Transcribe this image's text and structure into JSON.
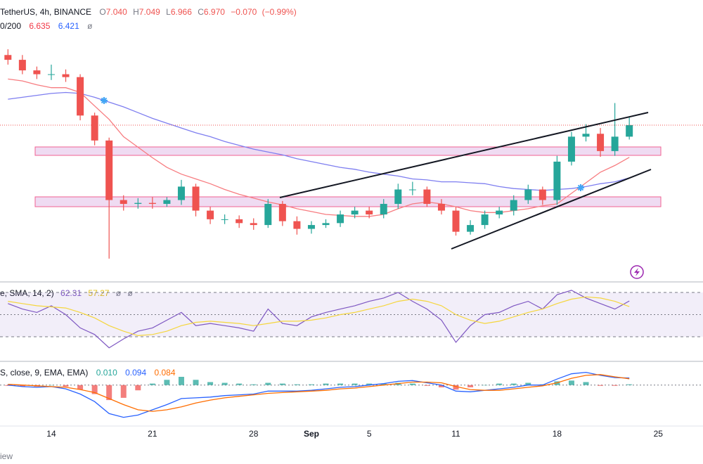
{
  "footer": "iew",
  "chart_data": {
    "type": "candlestick",
    "title": "TetherUS, 4h, BINANCE",
    "ohlc": [
      {
        "key": "O",
        "value": 7.04,
        "label": "7.040"
      },
      {
        "key": "H",
        "value": 7.049,
        "label": "7.049"
      },
      {
        "key": "L",
        "value": 6.966,
        "label": "6.966"
      },
      {
        "key": "C",
        "value": 6.97,
        "label": "6.970"
      }
    ],
    "change": {
      "value": -0.07,
      "label": "−0.070"
    },
    "change_pct": {
      "value": -0.99,
      "label": "(−0.99%)"
    },
    "ma_title": "0/200",
    "na_symbol": "ø",
    "x": [
      11,
      12,
      13,
      14,
      15,
      16,
      17,
      18,
      19,
      20,
      21,
      22,
      23,
      24,
      25,
      26,
      27,
      28,
      29,
      30,
      31,
      32,
      33,
      34,
      35,
      36,
      37,
      38,
      39,
      40,
      41,
      42,
      43,
      44,
      45,
      46,
      47,
      48,
      49,
      50,
      51,
      52,
      53,
      54
    ],
    "open": [
      7.7,
      7.65,
      7.54,
      7.5,
      7.5,
      7.47,
      7.07,
      6.81,
      6.19,
      6.15,
      6.16,
      6.15,
      6.19,
      6.33,
      6.08,
      5.99,
      5.99,
      5.95,
      5.93,
      6.15,
      5.97,
      5.89,
      5.93,
      5.95,
      6.04,
      6.08,
      6.04,
      6.15,
      6.3,
      6.3,
      6.15,
      6.08,
      5.86,
      5.93,
      6.04,
      6.08,
      6.19,
      6.3,
      6.19,
      6.59,
      6.85,
      6.88,
      6.7,
      6.85
    ],
    "high": [
      7.76,
      7.7,
      7.58,
      7.6,
      7.55,
      7.5,
      7.1,
      6.84,
      6.24,
      6.21,
      6.22,
      6.22,
      6.4,
      6.36,
      6.12,
      6.04,
      6.03,
      6.0,
      6.2,
      6.18,
      6.02,
      5.97,
      5.99,
      6.08,
      6.12,
      6.12,
      6.2,
      6.36,
      6.38,
      6.33,
      6.2,
      6.12,
      5.98,
      6.08,
      6.12,
      6.24,
      6.35,
      6.33,
      6.65,
      6.9,
      6.98,
      6.94,
      7.2,
      7.05
    ],
    "low": [
      7.6,
      7.5,
      7.45,
      7.44,
      7.42,
      7.02,
      6.76,
      5.58,
      6.08,
      6.1,
      6.1,
      6.12,
      6.14,
      6.02,
      5.94,
      5.94,
      5.9,
      5.88,
      5.9,
      5.92,
      5.83,
      5.84,
      5.9,
      5.91,
      6.0,
      6.0,
      6.0,
      6.1,
      6.24,
      6.12,
      6.04,
      5.82,
      5.83,
      5.89,
      6.0,
      6.03,
      6.15,
      6.14,
      6.14,
      6.55,
      6.8,
      6.64,
      6.65,
      6.82
    ],
    "close": [
      7.65,
      7.54,
      7.5,
      7.5,
      7.47,
      7.07,
      6.81,
      6.19,
      6.15,
      6.16,
      6.15,
      6.19,
      6.33,
      6.08,
      5.99,
      5.99,
      5.95,
      5.93,
      6.15,
      5.97,
      5.89,
      5.93,
      5.95,
      6.04,
      6.08,
      6.04,
      6.15,
      6.3,
      6.3,
      6.15,
      6.08,
      5.86,
      5.93,
      6.04,
      6.08,
      6.19,
      6.3,
      6.19,
      6.59,
      6.85,
      6.88,
      6.7,
      6.85,
      6.97
    ],
    "up_color": "#26a69a",
    "down_color": "#ef5350",
    "series": [
      {
        "color": "#f77c80",
        "values": [
          7.45,
          7.43,
          7.39,
          7.36,
          7.36,
          7.31,
          7.17,
          7.03,
          6.85,
          6.74,
          6.63,
          6.53,
          6.46,
          6.41,
          6.36,
          6.3,
          6.25,
          6.21,
          6.17,
          6.14,
          6.1,
          6.07,
          6.04,
          6.03,
          6.02,
          6.02,
          6.04,
          6.1,
          6.15,
          6.17,
          6.15,
          6.12,
          6.08,
          6.06,
          6.06,
          6.08,
          6.1,
          6.13,
          6.15,
          6.26,
          6.37,
          6.48,
          6.55,
          6.635
        ]
      },
      {
        "color": "#7e7ef0",
        "values": [
          7.24,
          7.26,
          7.28,
          7.3,
          7.31,
          7.3,
          7.26,
          7.21,
          7.16,
          7.1,
          7.04,
          6.99,
          6.94,
          6.89,
          6.85,
          6.8,
          6.76,
          6.72,
          6.69,
          6.66,
          6.62,
          6.59,
          6.56,
          6.53,
          6.51,
          6.48,
          6.46,
          6.44,
          6.41,
          6.4,
          6.38,
          6.38,
          6.37,
          6.36,
          6.33,
          6.31,
          6.3,
          6.29,
          6.3,
          6.31,
          6.33,
          6.36,
          6.38,
          6.421
        ]
      }
    ],
    "xlim": [
      10.45,
      59.1
    ],
    "ylim": [
      5.345,
      7.98
    ],
    "xticks": [
      14,
      21,
      28,
      {
        "value": 32,
        "label": "Sep"
      },
      {
        "value": 36,
        "label": "5"
      },
      {
        "value": 42,
        "label": "11"
      },
      {
        "value": 49,
        "label": "18"
      },
      {
        "value": 56,
        "label": "25"
      }
    ],
    "last_price_line": true,
    "panes": [
      {
        "type": "line",
        "title": "e, SMA, 14, 2)",
        "ylim": [
          10.3,
          77
        ],
        "levels": [
          70,
          50,
          30
        ],
        "band_color": "#7e57c2",
        "na_symbols": [
          "ø",
          "ø"
        ],
        "series": [
          {
            "color": "#7e57c2",
            "values": [
              60,
              55,
              52,
              58,
              50,
              38,
              32,
              20,
              28,
              35,
              38,
              45,
              52,
              40,
              42,
              40,
              38,
              35,
              55,
              42,
              40,
              48,
              52,
              55,
              58,
              62,
              65,
              70,
              62,
              55,
              45,
              25,
              40,
              50,
              52,
              58,
              62,
              55,
              68,
              72,
              65,
              60,
              55,
              62.31
            ]
          },
          {
            "color": "#f5d63d",
            "values": [
              62,
              60,
              58,
              57,
              56,
              52,
              47,
              40,
              35,
              31,
              32,
              35,
              40,
              43,
              44,
              43,
              42,
              40,
              42,
              44,
              44,
              45,
              47,
              50,
              52,
              55,
              58,
              62,
              64,
              62,
              58,
              50,
              45,
              42,
              44,
              48,
              52,
              55,
              60,
              64,
              66,
              65,
              62,
              57.27
            ]
          }
        ]
      },
      {
        "type": "macd",
        "title": "S, close, 9, EMA, EMA)",
        "ylim": [
          -0.49,
          0.26
        ],
        "histogram": {
          "values": [
            -0.01,
            -0.02,
            -0.02,
            0.0,
            -0.02,
            -0.06,
            -0.12,
            -0.2,
            -0.17,
            -0.07,
            0.02,
            0.07,
            0.11,
            0.07,
            0.04,
            0.03,
            0.02,
            0.01,
            0.03,
            0.02,
            0.01,
            0.01,
            0.02,
            0.02,
            0.02,
            0.02,
            0.02,
            0.03,
            0.02,
            -0.01,
            -0.03,
            -0.06,
            -0.03,
            0.0,
            0.02,
            0.02,
            0.03,
            0.01,
            0.05,
            0.06,
            0.04,
            -0.01,
            -0.01,
            0.01
          ],
          "value_labels": [
            null,
            null,
            null,
            null,
            null,
            null,
            null,
            null,
            null,
            null,
            null,
            null,
            null,
            null,
            null,
            null,
            null,
            null,
            null,
            null,
            null,
            null,
            null,
            null,
            null,
            null,
            null,
            null,
            null,
            null,
            null,
            null,
            null,
            null,
            null,
            null,
            null,
            null,
            null,
            null,
            null,
            null,
            null,
            "0.010"
          ],
          "up_color": "#26a69a",
          "down_color": "#ef5350"
        },
        "series": [
          {
            "color": "#2962ff",
            "values": [
              0.0,
              -0.02,
              -0.03,
              -0.02,
              -0.05,
              -0.12,
              -0.22,
              -0.38,
              -0.43,
              -0.4,
              -0.33,
              -0.26,
              -0.18,
              -0.17,
              -0.16,
              -0.14,
              -0.13,
              -0.12,
              -0.08,
              -0.08,
              -0.08,
              -0.07,
              -0.05,
              -0.03,
              -0.02,
              0.0,
              0.02,
              0.05,
              0.06,
              0.03,
              0.0,
              -0.08,
              -0.09,
              -0.07,
              -0.05,
              -0.03,
              0.0,
              0.0,
              0.08,
              0.15,
              0.17,
              0.13,
              0.1,
              0.094
            ]
          },
          {
            "color": "#ff6d00",
            "values": [
              0.01,
              0.0,
              -0.01,
              -0.02,
              -0.03,
              -0.06,
              -0.1,
              -0.18,
              -0.26,
              -0.33,
              -0.35,
              -0.33,
              -0.29,
              -0.24,
              -0.2,
              -0.17,
              -0.15,
              -0.13,
              -0.11,
              -0.1,
              -0.09,
              -0.08,
              -0.07,
              -0.05,
              -0.04,
              -0.02,
              0.0,
              0.02,
              0.04,
              0.04,
              0.03,
              -0.02,
              -0.06,
              -0.07,
              -0.07,
              -0.05,
              -0.03,
              -0.01,
              0.03,
              0.09,
              0.13,
              0.14,
              0.11,
              0.084
            ]
          }
        ]
      }
    ]
  }
}
